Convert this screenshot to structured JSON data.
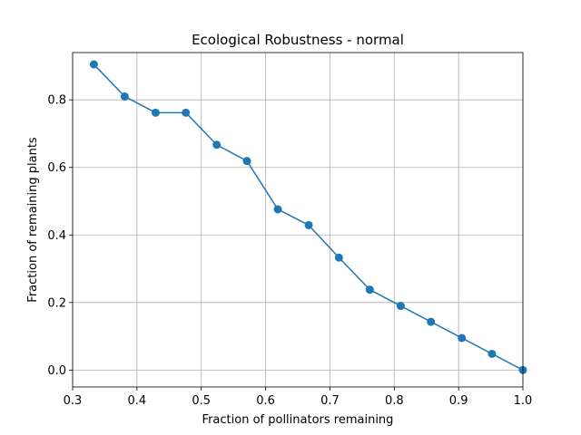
{
  "chart_data": {
    "type": "line",
    "title": "Ecological Robustness - normal",
    "xlabel": "Fraction of pollinators remaining",
    "ylabel": "Fraction of remaining plants",
    "xlim": [
      0.3,
      1.0
    ],
    "ylim": [
      -0.05,
      0.94
    ],
    "xticks": [
      0.3,
      0.4,
      0.5,
      0.6,
      0.7,
      0.8,
      0.9,
      1.0
    ],
    "xtick_labels": [
      "0.3",
      "0.4",
      "0.5",
      "0.6",
      "0.7",
      "0.8",
      "0.9",
      "1.0"
    ],
    "yticks": [
      0.0,
      0.2,
      0.4,
      0.6,
      0.8
    ],
    "ytick_labels": [
      "0.0",
      "0.2",
      "0.4",
      "0.6",
      "0.8"
    ],
    "grid": true,
    "marker": "circle",
    "color": "#1f77b4",
    "series": [
      {
        "x": [
          0.333,
          0.381,
          0.429,
          0.476,
          0.524,
          0.571,
          0.619,
          0.667,
          0.714,
          0.762,
          0.81,
          0.857,
          0.905,
          0.952,
          1.0
        ],
        "y": [
          0.905,
          0.81,
          0.762,
          0.762,
          0.667,
          0.619,
          0.476,
          0.429,
          0.333,
          0.238,
          0.19,
          0.143,
          0.095,
          0.048,
          0.0
        ]
      }
    ]
  }
}
